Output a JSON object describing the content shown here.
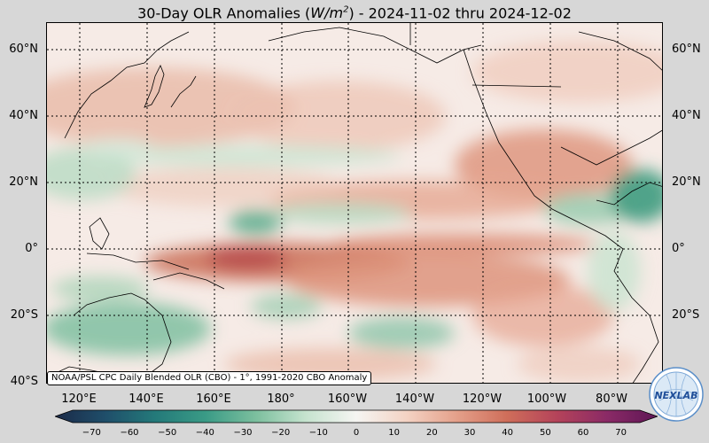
{
  "title": {
    "prefix": "30-Day OLR Anomalies (",
    "unit_var": "W/m",
    "unit_exp": "2",
    "suffix": ") - 2024-11-02 thru 2024-12-02"
  },
  "lat_labels": [
    "60°N",
    "40°N",
    "20°N",
    "0°",
    "20°S",
    "40°S"
  ],
  "lon_labels": [
    "120°E",
    "140°E",
    "160°E",
    "180°",
    "160°W",
    "140°W",
    "120°W",
    "100°W",
    "80°W"
  ],
  "attribution": "NOAA/PSL CPC Daily Blended OLR (CBO) - 1°, 1991-2020 CBO Anomaly",
  "colorbar": {
    "ticks": [
      "−70",
      "−60",
      "−50",
      "−40",
      "−30",
      "−20",
      "−10",
      "0",
      "10",
      "20",
      "30",
      "40",
      "50",
      "60",
      "70"
    ],
    "range": [
      -75,
      75
    ],
    "colors": [
      "#1b2a48",
      "#1f4e6a",
      "#247a7a",
      "#3a9b86",
      "#7cbf9e",
      "#c6e3cf",
      "#f5f5f2",
      "#f4d3c4",
      "#e4a08a",
      "#cf6e5a",
      "#b4435a",
      "#8a2a66",
      "#5e1655"
    ]
  },
  "colors": {
    "positive_anomaly": "#d77f68",
    "negative_anomaly": "#2f8f74",
    "background": "#d7d7d7"
  },
  "logo": {
    "text": "NEXLAB"
  }
}
